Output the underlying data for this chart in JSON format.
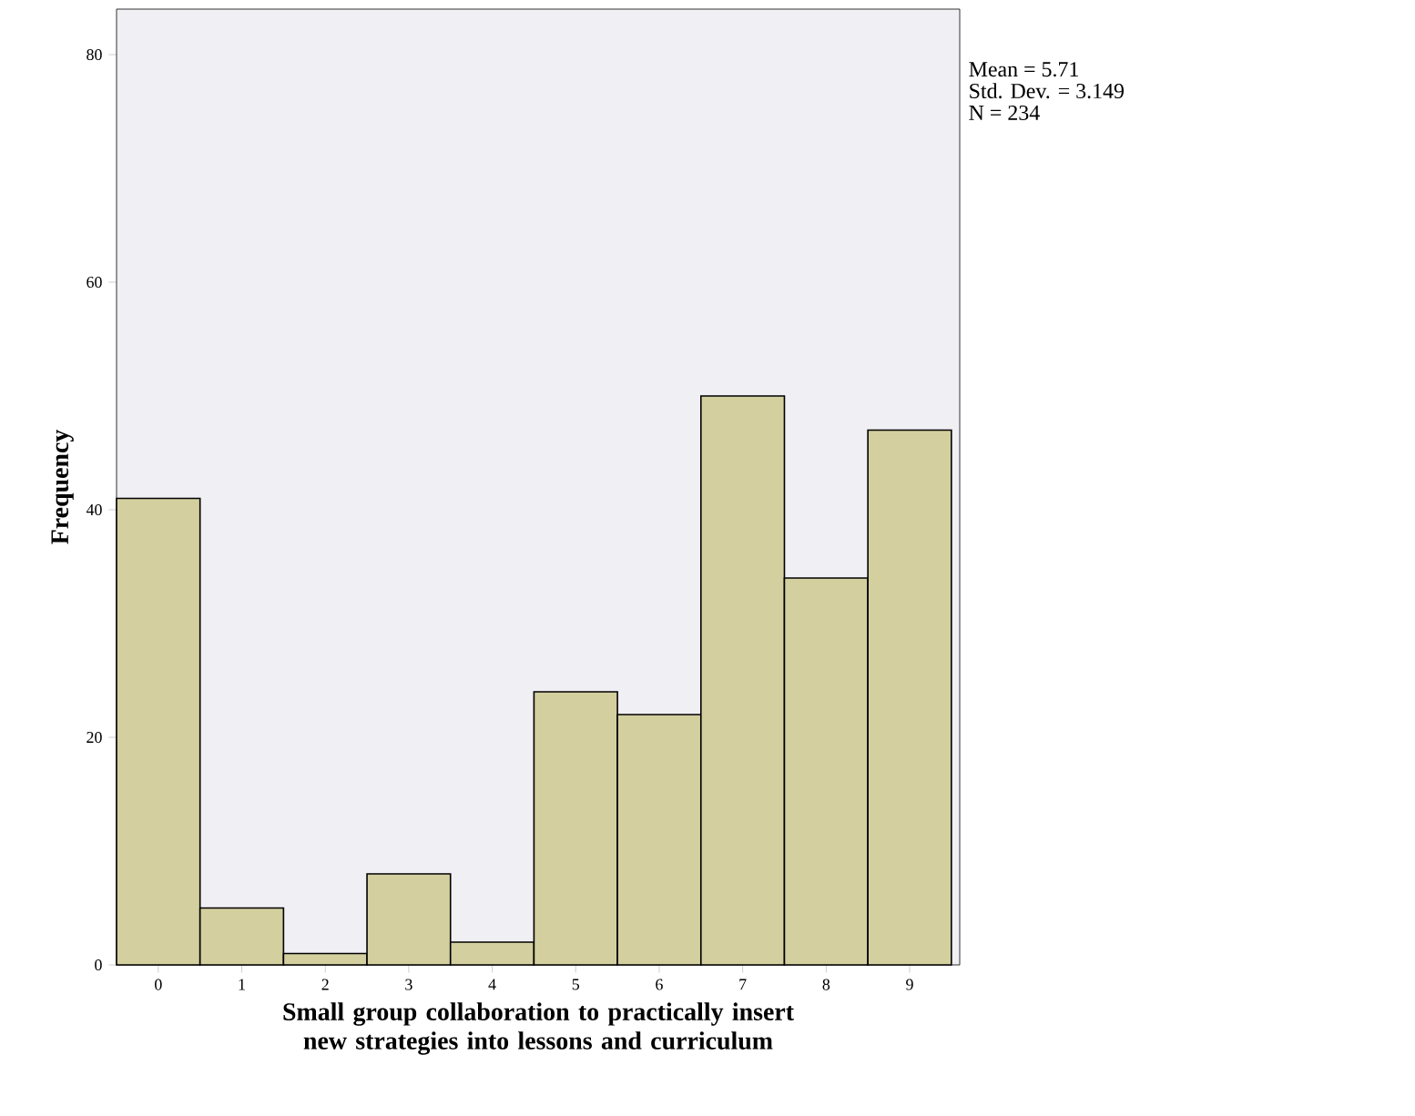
{
  "chart_data": {
    "type": "histogram",
    "bins": [
      -0.5,
      0.5,
      1.5,
      2.5,
      3.5,
      4.5,
      5.5,
      6.5,
      7.5,
      8.5,
      9.5
    ],
    "values": [
      41,
      5,
      1,
      8,
      2,
      24,
      22,
      50,
      34,
      47
    ],
    "color": "#d3cf9f",
    "xlim": [
      -0.5,
      9.6
    ],
    "xticks": [
      0,
      1,
      2,
      3,
      4,
      5,
      6,
      7,
      8,
      9
    ],
    "ylim": [
      0,
      84
    ],
    "yticks": [
      0,
      20,
      40,
      60,
      80
    ],
    "xlabel": "Small group collaboration to practically insert new strategies into lessons and curriculum",
    "ylabel": "Frequency",
    "annotations": [
      "Mean = 5.71",
      "Std. Dev. = 3.149",
      "N = 234"
    ]
  }
}
